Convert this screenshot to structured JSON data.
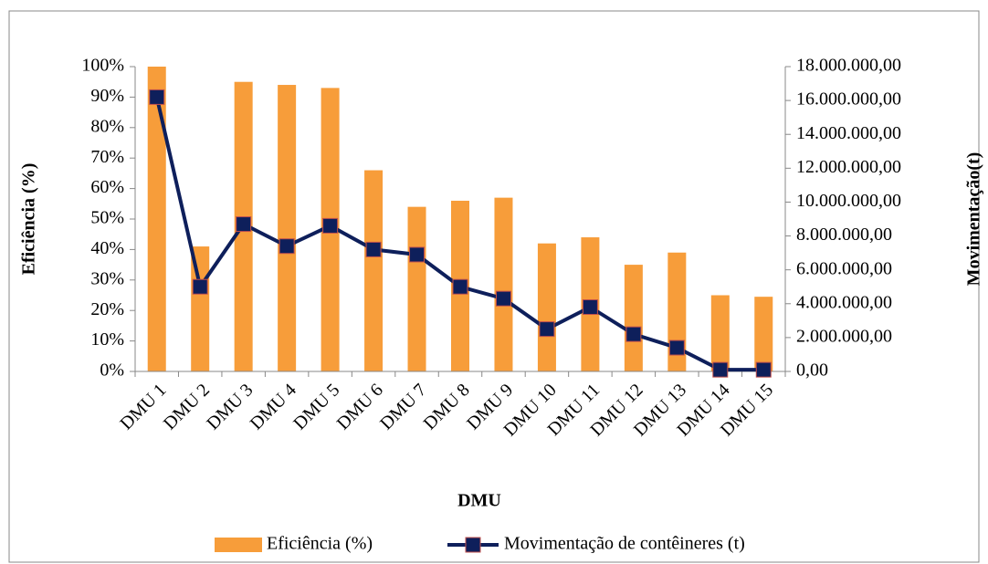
{
  "chart_data": {
    "type": "bar",
    "x_label": "DMU",
    "y_label": "Eficiência (%)",
    "y2_label": "Movimentação(t)",
    "categories": [
      "DMU 1",
      "DMU 2",
      "DMU 3",
      "DMU 4",
      "DMU 5",
      "DMU 6",
      "DMU 7",
      "DMU 8",
      "DMU 9",
      "DMU 10",
      "DMU 11",
      "DMU 12",
      "DMU 13",
      "DMU 14",
      "DMU 15"
    ],
    "series": [
      {
        "name": "Eficiência (%)",
        "type": "bar",
        "color": "#f79d3a",
        "values": [
          100,
          41,
          95,
          94,
          93,
          66,
          54,
          56,
          57,
          42,
          44,
          35,
          39,
          25,
          24.5
        ]
      },
      {
        "name": "Movimentação de contêineres (t)",
        "type": "line",
        "axis": "y2",
        "color": "#0e1f5b",
        "marker_edge": "#c0504d",
        "values": [
          16200000,
          5000000,
          8700000,
          7400000,
          8600000,
          7200000,
          6900000,
          5000000,
          4300000,
          2500000,
          3800000,
          2200000,
          1400000,
          100000,
          100000
        ]
      }
    ],
    "ylim": [
      0,
      100
    ],
    "yticks": [
      {
        "value": 0,
        "label": "0%"
      },
      {
        "value": 10,
        "label": "10%"
      },
      {
        "value": 20,
        "label": "20%"
      },
      {
        "value": 30,
        "label": "30%"
      },
      {
        "value": 40,
        "label": "40%"
      },
      {
        "value": 50,
        "label": "50%"
      },
      {
        "value": 60,
        "label": "60%"
      },
      {
        "value": 70,
        "label": "70%"
      },
      {
        "value": 80,
        "label": "80%"
      },
      {
        "value": 90,
        "label": "90%"
      },
      {
        "value": 100,
        "label": "100%"
      }
    ],
    "y2lim": [
      0,
      18000000
    ],
    "y2ticks": [
      {
        "value": 0,
        "label": "0,00"
      },
      {
        "value": 2000000,
        "label": "2.000.000,00"
      },
      {
        "value": 4000000,
        "label": "4.000.000,00"
      },
      {
        "value": 6000000,
        "label": "6.000.000,00"
      },
      {
        "value": 8000000,
        "label": "8.000.000,00"
      },
      {
        "value": 10000000,
        "label": "10.000.000,00"
      },
      {
        "value": 12000000,
        "label": "12.000.000,00"
      },
      {
        "value": 14000000,
        "label": "14.000.000,00"
      },
      {
        "value": 16000000,
        "label": "16.000.000,00"
      },
      {
        "value": 18000000,
        "label": "18.000.000,00"
      }
    ],
    "legend": "bottom"
  }
}
